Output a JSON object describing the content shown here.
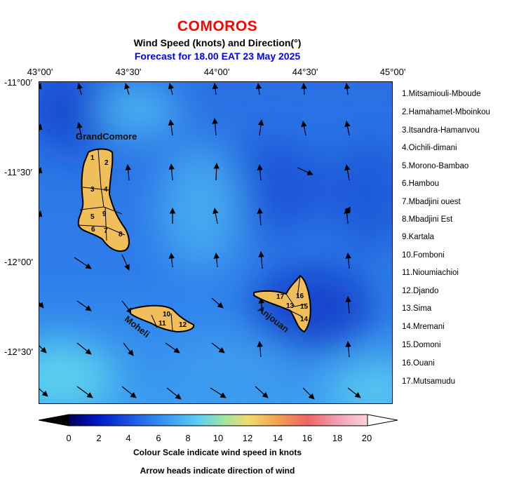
{
  "header": {
    "title": "COMOROS",
    "subtitle": "Wind Speed (knots) and Direction(°)",
    "forecast": "Forecast for  18.00 EAT 23 May 2025"
  },
  "axes": {
    "longitudes": [
      "43°00'",
      "43°30'",
      "44°00'",
      "44°30'",
      "45°00'"
    ],
    "latitudes": [
      "-11°00'",
      "-11°30'",
      "-12°00'",
      "-12°30'"
    ]
  },
  "islands": {
    "grandcomore": "GrandComore",
    "moheli": "Moheli",
    "anjouan": "Anjouan"
  },
  "districts": [
    "1.Mitsamiouli-Mboude",
    "2.Hamahamet-Mboinkou",
    "3.Itsandra-Hamanvou",
    "4.Oichili-dimani",
    "5.Morono-Bambao",
    "6.Hambou",
    "7.Mbadjini ouest",
    "8.Mbadjini Est",
    "9.Kartala",
    "10.Fomboni",
    "11.Nioumiachioi",
    "12.Djando",
    "13.Sima",
    "14.Mremani",
    "15.Domoni",
    "16.Ouani",
    "17.Mutsamudu"
  ],
  "district_numbers": {
    "n1": "1",
    "n2": "2",
    "n3": "3",
    "n4": "4",
    "n5": "5",
    "n6": "6",
    "n7": "7",
    "n8": "8",
    "n9": "9",
    "n10": "10",
    "n11": "11",
    "n12": "12",
    "n13": "13",
    "n14": "14",
    "n15": "15",
    "n16": "16",
    "n17": "17"
  },
  "colorbar": {
    "ticks": [
      "0",
      "2",
      "4",
      "6",
      "8",
      "10",
      "12",
      "14",
      "16",
      "18",
      "20"
    ],
    "min_knots": 0,
    "max_knots": 20,
    "colors": [
      "#000000",
      "#00005a",
      "#0018c8",
      "#1e5ee6",
      "#3ca0f5",
      "#5ed2f0",
      "#a0e6a0",
      "#f0dc6e",
      "#f5a050",
      "#f06464",
      "#f0a0b4",
      "#fad2dc",
      "#ffffff"
    ],
    "caption": "Colour Scale indicate wind speed in knots"
  },
  "footer": "Arrow heads indicate direction of wind",
  "colors": {
    "title": "#ff0000",
    "forecast": "#0000ff",
    "land": "#f0be5a",
    "ocean": "#2a78e8"
  }
}
